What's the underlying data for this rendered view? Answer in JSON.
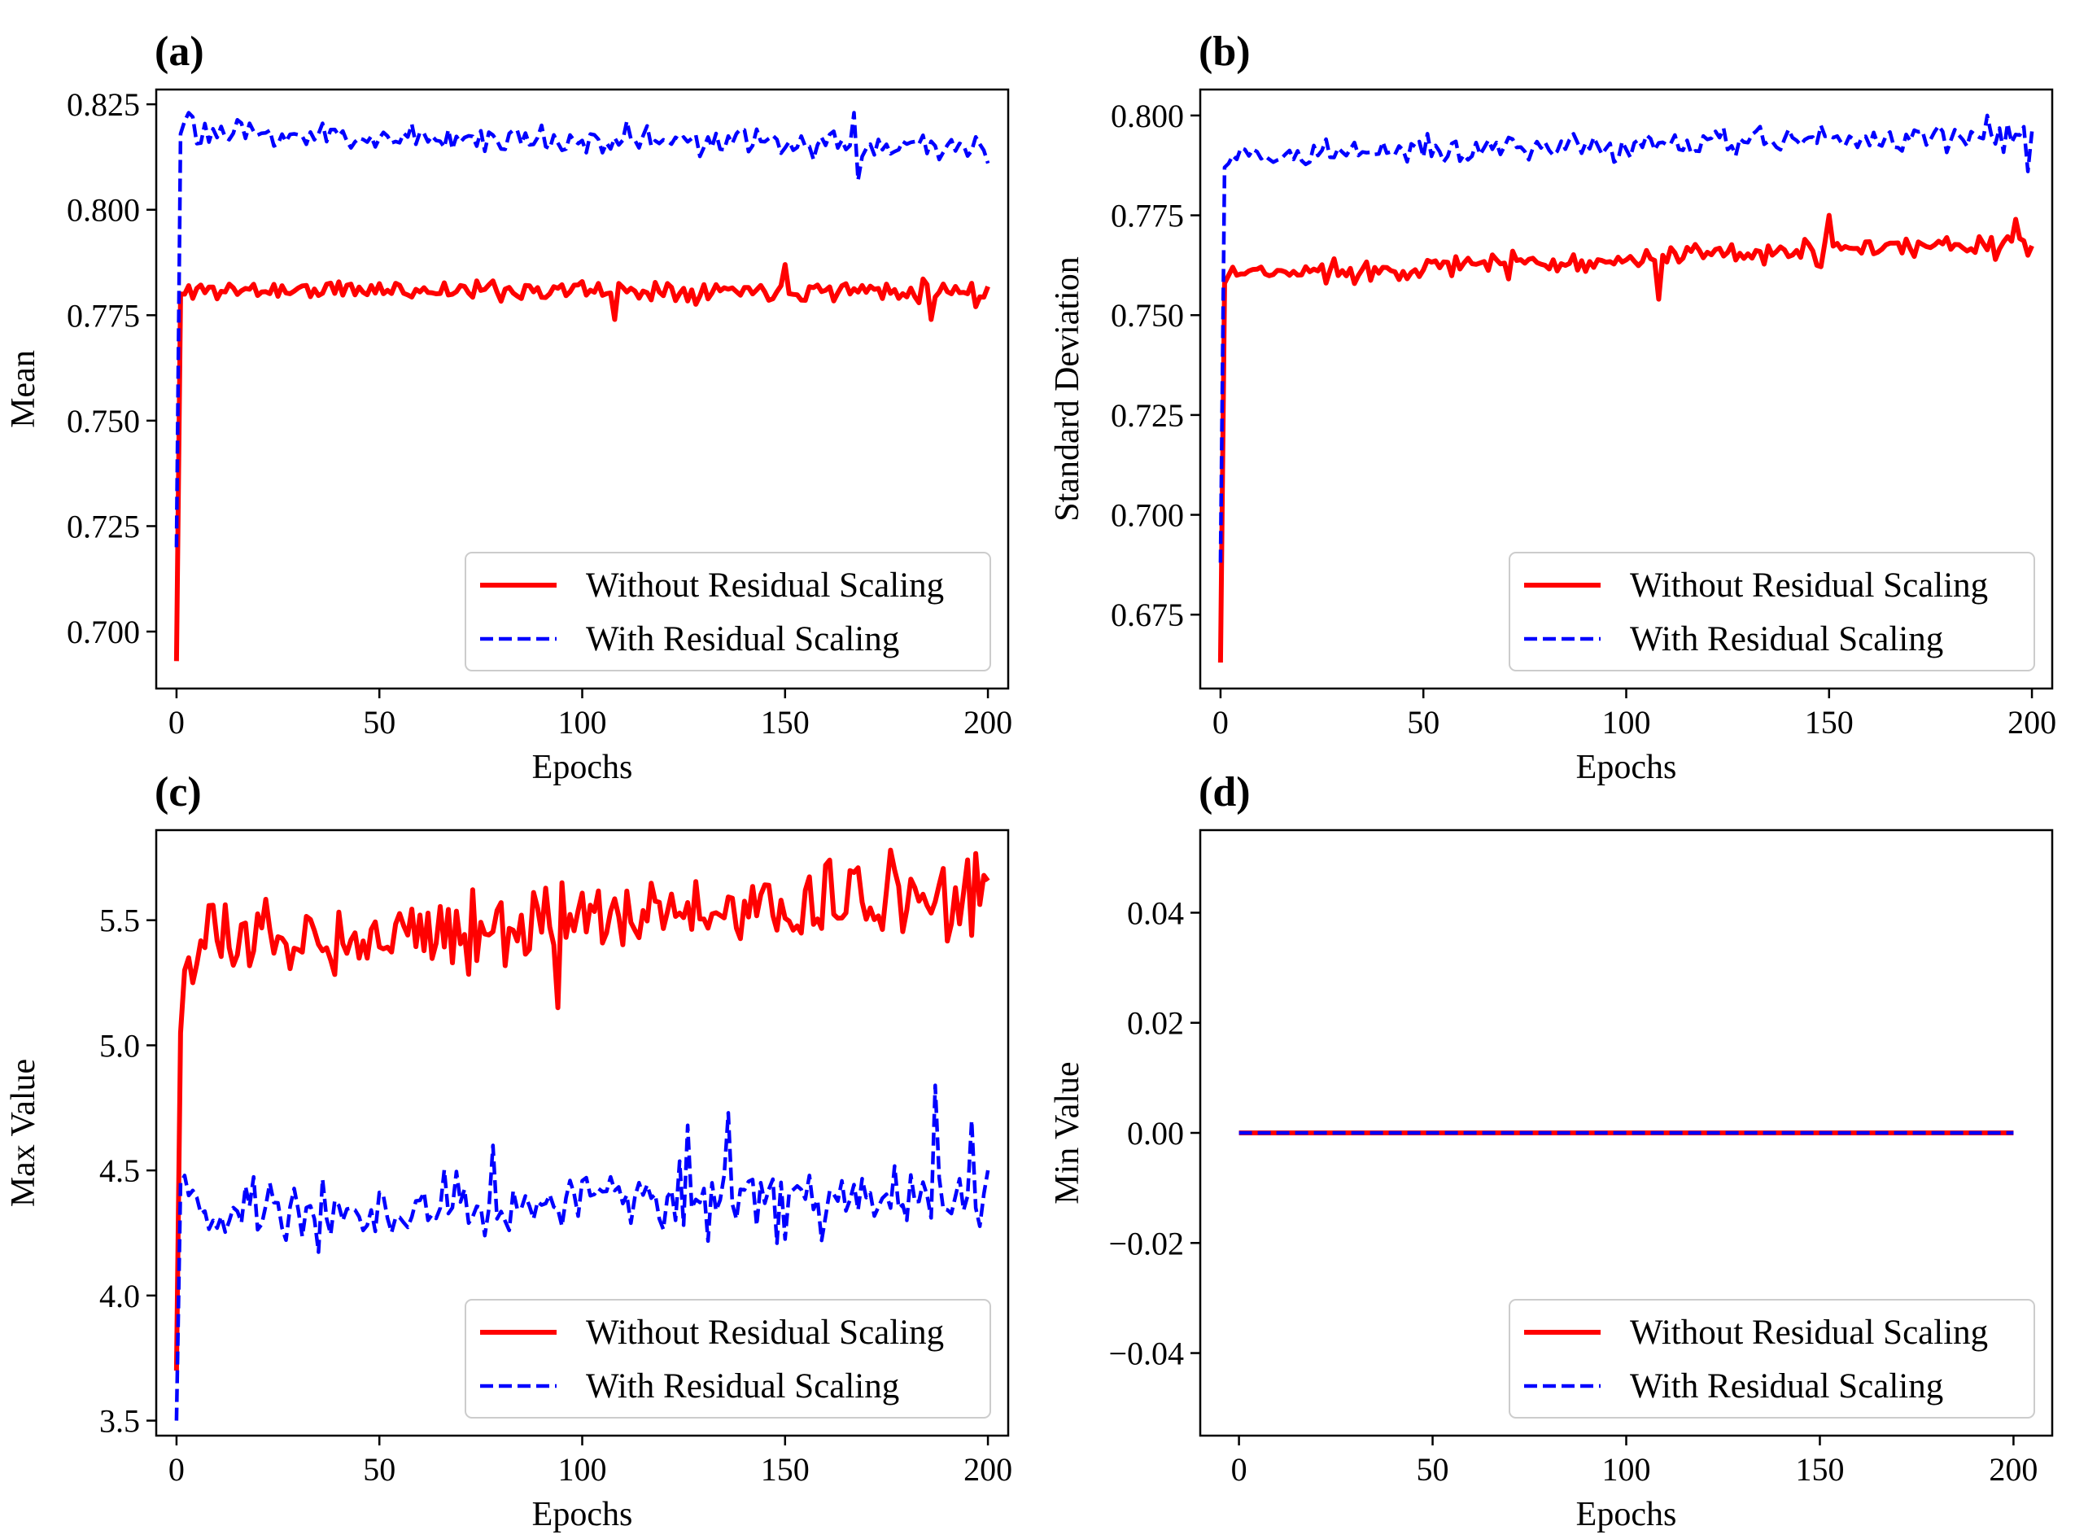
{
  "legend_entries": [
    "Without Residual Scaling",
    "With Residual Scaling"
  ],
  "colors": {
    "without": "#ff0000",
    "with": "#0000ff"
  },
  "chart_data": [
    {
      "panel": "(a)",
      "type": "line",
      "xlabel": "Epochs",
      "ylabel": "Mean",
      "xlim": [
        -5,
        205
      ],
      "ylim": [
        0.6865,
        0.8285
      ],
      "xticks": [
        0,
        50,
        100,
        150,
        200
      ],
      "yticks": [
        0.7,
        0.725,
        0.75,
        0.775,
        0.8,
        0.825
      ],
      "ytick_labels": [
        "0.700",
        "0.725",
        "0.750",
        "0.775",
        "0.800",
        "0.825"
      ],
      "legend_position": "lower right",
      "grid": false,
      "series": [
        {
          "name": "Without Residual Scaling",
          "style": "solid",
          "color": "#ff0000",
          "start": 0.693,
          "early": [
            0.693,
            0.78,
            0.78,
            0.782,
            0.779
          ],
          "level": [
            0.781,
            0.781
          ],
          "noise": 0.0015,
          "spikes": [
            [
              108,
              0.774
            ],
            [
              150,
              0.787
            ],
            [
              186,
              0.774
            ],
            [
              197,
              0.777
            ]
          ],
          "seed": 11
        },
        {
          "name": "With Residual Scaling",
          "style": "dashed",
          "color": "#0000ff",
          "start": 0.72,
          "early": [
            0.72,
            0.818,
            0.821,
            0.823,
            0.822
          ],
          "level": [
            0.818,
            0.815
          ],
          "noise": 0.002,
          "spikes": [
            [
              111,
              0.821
            ],
            [
              167,
              0.823
            ],
            [
              168,
              0.807
            ],
            [
              200,
              0.811
            ]
          ],
          "seed": 23
        }
      ]
    },
    {
      "panel": "(b)",
      "type": "line",
      "xlabel": "Epochs",
      "ylabel": "Standard Deviation",
      "xlim": [
        -5,
        205
      ],
      "ylim": [
        0.6565,
        0.8065
      ],
      "xticks": [
        0,
        50,
        100,
        150,
        200
      ],
      "yticks": [
        0.675,
        0.7,
        0.725,
        0.75,
        0.775,
        0.8
      ],
      "ytick_labels": [
        "0.675",
        "0.700",
        "0.725",
        "0.750",
        "0.775",
        "0.800"
      ],
      "legend_position": "lower right",
      "grid": false,
      "series": [
        {
          "name": "Without Residual Scaling",
          "style": "solid",
          "color": "#ff0000",
          "start": 0.663,
          "early": [
            0.663,
            0.758,
            0.76,
            0.762,
            0.76
          ],
          "level": [
            0.76,
            0.768
          ],
          "noise": 0.0018,
          "spikes": [
            [
              108,
              0.754
            ],
            [
              150,
              0.775
            ],
            [
              196,
              0.774
            ],
            [
              199,
              0.765
            ]
          ],
          "seed": 37
        },
        {
          "name": "With Residual Scaling",
          "style": "dashed",
          "color": "#0000ff",
          "start": 0.688,
          "early": [
            0.688,
            0.787,
            0.788,
            0.79,
            0.789
          ],
          "level": [
            0.79,
            0.795
          ],
          "noise": 0.0022,
          "spikes": [
            [
              189,
              0.8
            ],
            [
              194,
              0.798
            ],
            [
              199,
              0.786
            ],
            [
              200,
              0.796
            ]
          ],
          "seed": 41
        }
      ]
    },
    {
      "panel": "(c)",
      "type": "line",
      "xlabel": "Epochs",
      "ylabel": "Max Value",
      "xlim": [
        -5,
        205
      ],
      "ylim": [
        3.44,
        5.86
      ],
      "xticks": [
        0,
        50,
        100,
        150,
        200
      ],
      "yticks": [
        3.5,
        4.0,
        4.5,
        5.0,
        5.5
      ],
      "ytick_labels": [
        "3.5",
        "4.0",
        "4.5",
        "5.0",
        "5.5"
      ],
      "legend_position": "lower right",
      "grid": false,
      "series": [
        {
          "name": "Without Residual Scaling",
          "style": "solid",
          "color": "#ff0000",
          "start": 3.7,
          "early": [
            3.7,
            5.05,
            5.3,
            5.35,
            5.25
          ],
          "level": [
            5.4,
            5.6
          ],
          "noise": 0.09,
          "spikes": [
            [
              94,
              5.15
            ],
            [
              95,
              5.65
            ],
            [
              160,
              5.72
            ],
            [
              176,
              5.78
            ]
          ],
          "seed": 53
        },
        {
          "name": "With Residual Scaling",
          "style": "dashed",
          "color": "#0000ff",
          "start": 3.5,
          "early": [
            3.5,
            4.45,
            4.48,
            4.4,
            4.42
          ],
          "level": [
            4.32,
            4.4
          ],
          "noise": 0.09,
          "spikes": [
            [
              78,
              4.6
            ],
            [
              126,
              4.68
            ],
            [
              136,
              4.73
            ],
            [
              187,
              4.84
            ],
            [
              196,
              4.7
            ]
          ],
          "seed": 67
        }
      ]
    },
    {
      "panel": "(d)",
      "type": "line",
      "xlabel": "Epochs",
      "ylabel": "Min Value",
      "xlim": [
        -10,
        210
      ],
      "ylim": [
        -0.055,
        0.055
      ],
      "xticks": [
        0,
        50,
        100,
        150,
        200
      ],
      "yticks": [
        -0.04,
        -0.02,
        0.0,
        0.02,
        0.04
      ],
      "ytick_labels": [
        "−0.04",
        "−0.02",
        "0.00",
        "0.02",
        "0.04"
      ],
      "legend_position": "lower right",
      "grid": false,
      "series": [
        {
          "name": "Without Residual Scaling",
          "style": "solid",
          "color": "#ff0000",
          "constant": 0.0
        },
        {
          "name": "With Residual Scaling",
          "style": "dashed",
          "color": "#0000ff",
          "constant": 0.0
        }
      ]
    }
  ]
}
